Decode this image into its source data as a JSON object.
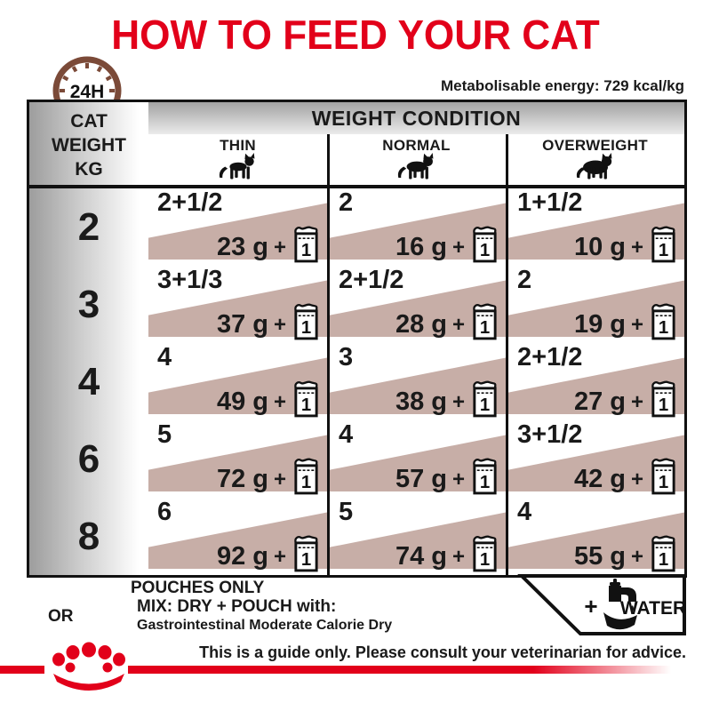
{
  "title": "HOW TO FEED YOUR CAT",
  "energy_label": "Metabolisable energy: 729 kcal/kg",
  "clock": {
    "label": "24H"
  },
  "table": {
    "corner_lines": [
      "CAT",
      "WEIGHT",
      "KG"
    ],
    "header": "WEIGHT CONDITION",
    "columns": [
      {
        "label": "THIN",
        "icon": "cat-thin-icon"
      },
      {
        "label": "NORMAL",
        "icon": "cat-normal-icon"
      },
      {
        "label": "OVERWEIGHT",
        "icon": "cat-overweight-icon"
      }
    ],
    "plus": "+",
    "pouch_unit": "1",
    "rows": [
      {
        "weight": "2",
        "cells": [
          {
            "pouches": "2+1/2",
            "dry": "23 g"
          },
          {
            "pouches": "2",
            "dry": "16 g"
          },
          {
            "pouches": "1+1/2",
            "dry": "10 g"
          }
        ]
      },
      {
        "weight": "3",
        "cells": [
          {
            "pouches": "3+1/3",
            "dry": "37 g"
          },
          {
            "pouches": "2+1/2",
            "dry": "28 g"
          },
          {
            "pouches": "2",
            "dry": "19 g"
          }
        ]
      },
      {
        "weight": "4",
        "cells": [
          {
            "pouches": "4",
            "dry": "49 g"
          },
          {
            "pouches": "3",
            "dry": "38 g"
          },
          {
            "pouches": "2+1/2",
            "dry": "27 g"
          }
        ]
      },
      {
        "weight": "6",
        "cells": [
          {
            "pouches": "5",
            "dry": "72 g"
          },
          {
            "pouches": "4",
            "dry": "57 g"
          },
          {
            "pouches": "3+1/2",
            "dry": "42 g"
          }
        ]
      },
      {
        "weight": "8",
        "cells": [
          {
            "pouches": "6",
            "dry": "92 g"
          },
          {
            "pouches": "5",
            "dry": "74 g"
          },
          {
            "pouches": "4",
            "dry": "55 g"
          }
        ]
      }
    ]
  },
  "legend": {
    "pouches_only": "POUCHES ONLY",
    "or": "OR",
    "mix_line1": "MIX: DRY + POUCH with:",
    "mix_line2": "Gastrointestinal Moderate Calorie Dry",
    "water_plus": "+",
    "water_label": "WATER"
  },
  "footer": {
    "note": "This is a guide only. Please consult your veterinarian for advice."
  },
  "colors": {
    "red": "#e2001a",
    "rose": "#c7aea7",
    "clock_brown": "#7b4a38",
    "ink": "#111111"
  }
}
